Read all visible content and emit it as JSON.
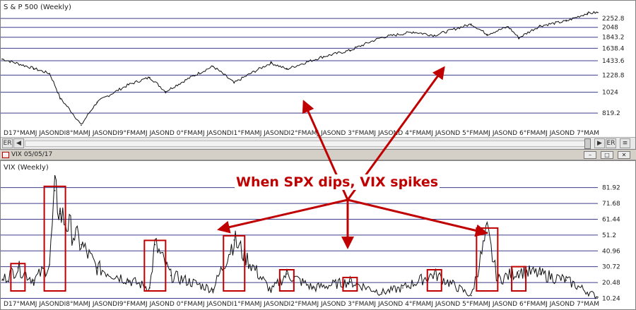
{
  "spx": {
    "title": "S & P 500 (Weekly)",
    "y_ticks": [
      "2252.8",
      "2048",
      "1843.2",
      "1638.4",
      "1433.6",
      "1228.8",
      "1024",
      "819.2"
    ],
    "date_axis": "D17°MAMJ JASONDI8°MAMJ JASONDI9°FMAMJ JASOND 0°FMAMJ JASONDI1°FMAMJ JASONDI2°FMAMJ JASOND 3°FMAMJ JASOND 4°FMAMJ JASOND 5°FMAMJ JASOND 6°FMAMJ JASOND 7°MAM",
    "scroll_left_label": "ER",
    "scroll_right_label": "ER"
  },
  "vix": {
    "window_title": "VIX 05/05/17",
    "title": "VIX (Weekly)",
    "y_ticks": [
      "81.92",
      "71.68",
      "61.44",
      "51.2",
      "40.96",
      "30.72",
      "20.48",
      "10.24"
    ],
    "date_axis": "D17°MAMJ JASONDI8°MAMJ JASONDI9°FMAMJ JASOND 0°FMAMJ JASONDI1°FMAMJ JASONDI2°FMAMJ JASOND 3°FMAMJ JASOND 4°FMAMJ JASOND 5°FMAMJ JASOND 6°FMAMJ JASOND 7°MAM"
  },
  "annotation": "When SPX dips, VIX spikes",
  "colors": {
    "accent": "#c00000",
    "grid": "#3c3c8c",
    "line": "#111111"
  },
  "chart_data": [
    {
      "type": "line",
      "title": "S & P 500 (Weekly)",
      "x": [
        "2007-12",
        "2008-06",
        "2008-09",
        "2008-11",
        "2009-03",
        "2009-06",
        "2009-12",
        "2010-04",
        "2010-07",
        "2011-04",
        "2011-08",
        "2012-03",
        "2012-06",
        "2013-01",
        "2013-06",
        "2013-12",
        "2014-06",
        "2014-10",
        "2015-05",
        "2015-08",
        "2015-12",
        "2016-02",
        "2016-06",
        "2016-11",
        "2017-03",
        "2017-05"
      ],
      "values": [
        1460,
        1320,
        1250,
        960,
        720,
        920,
        1110,
        1200,
        1030,
        1350,
        1130,
        1400,
        1310,
        1500,
        1600,
        1840,
        1950,
        1880,
        2120,
        1900,
        2060,
        1830,
        2080,
        2190,
        2380,
        2400
      ],
      "ylim": [
        700,
        2450
      ],
      "log_scale": true
    },
    {
      "type": "line",
      "title": "VIX (Weekly)",
      "x": [
        "2007-12",
        "2008-03",
        "2008-06",
        "2008-09",
        "2008-10",
        "2008-11",
        "2009-03",
        "2009-06",
        "2009-12",
        "2010-04",
        "2010-05",
        "2010-08",
        "2011-04",
        "2011-08",
        "2011-10",
        "2012-03",
        "2012-06",
        "2012-11",
        "2013-06",
        "2013-12",
        "2014-04",
        "2014-10",
        "2015-05",
        "2015-08",
        "2015-10",
        "2016-02",
        "2016-06",
        "2016-11",
        "2017-05"
      ],
      "values": [
        22,
        30,
        22,
        32,
        80,
        65,
        45,
        30,
        22,
        17,
        45,
        25,
        16,
        48,
        38,
        15,
        26,
        17,
        21,
        14,
        17,
        26,
        12,
        53,
        22,
        28,
        26,
        22,
        11
      ],
      "ylim": [
        10,
        90
      ],
      "annotation": "When SPX dips, VIX spikes"
    }
  ]
}
